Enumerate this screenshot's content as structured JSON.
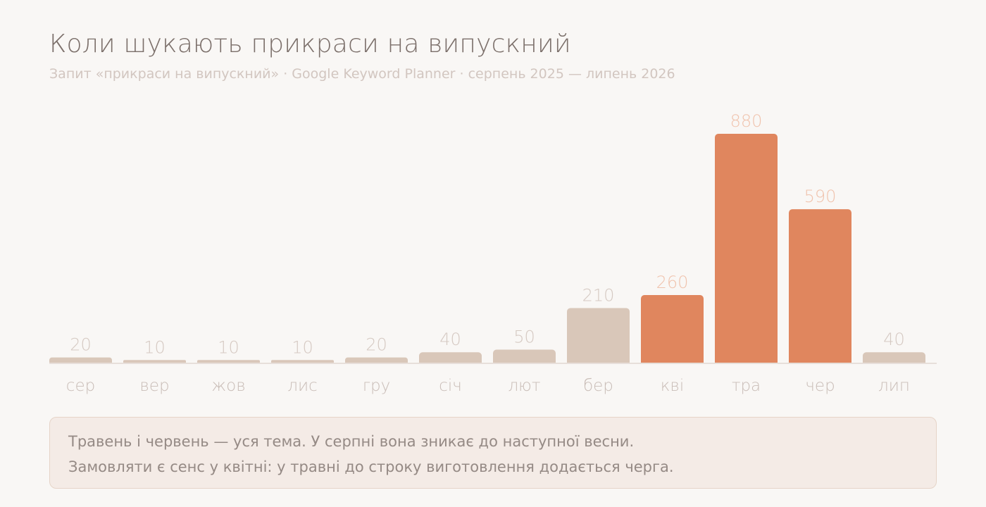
{
  "header": {
    "title": "Коли шукають прикраси на випускний",
    "subtitle": "Запит «прикраси на випускний» · Google Keyword Planner · серпень 2025 — липень 2026"
  },
  "note": {
    "line1": "Травень і червень — уся тема. У серпні вона зникає до наступної весни.",
    "line2": "Замовляти є сенс у квітні: у травні до строку виготовлення додається черга."
  },
  "colors": {
    "background": "#f9f7f5",
    "muted_bar": "#d9c7b9",
    "accent_bar": "#e0865e",
    "muted_label": "#d5c9c2",
    "accent_label": "#f0c3ad",
    "axis_label": "#c9bdb7",
    "baseline": "#e7dfda"
  },
  "chart_data": {
    "type": "bar",
    "title": "Коли шукають прикраси на випускний",
    "xlabel": "",
    "ylabel": "",
    "ylim": [
      0,
      880
    ],
    "grid": false,
    "categories": [
      "сер",
      "вер",
      "жов",
      "лис",
      "гру",
      "січ",
      "лют",
      "бер",
      "кві",
      "тра",
      "чер",
      "лип"
    ],
    "values": [
      20,
      10,
      10,
      10,
      20,
      40,
      50,
      210,
      260,
      880,
      590,
      40
    ],
    "highlighted": [
      "кві",
      "тра",
      "чер"
    ]
  }
}
